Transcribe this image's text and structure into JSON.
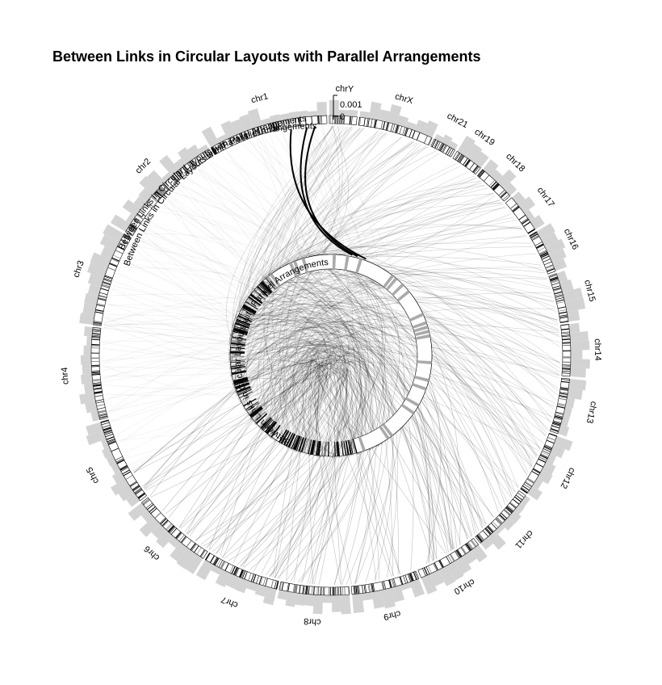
{
  "title": "Between Links in Circular Layouts with Parallel Arrangements",
  "track_annotation": "Between Links in Circular Layouts with Parallel Arrangements",
  "colors": {
    "histogram": "#d3d3d3",
    "band": "#000000",
    "link": "#000000",
    "background": "#ffffff"
  },
  "scale_ticks": {
    "max_label": "0.001",
    "min_label": "0"
  },
  "outer_chromosomes": [
    {
      "name": "chr1",
      "size": 249
    },
    {
      "name": "chr2",
      "size": 243
    },
    {
      "name": "chr3",
      "size": 198
    },
    {
      "name": "chr4",
      "size": 191
    },
    {
      "name": "chr5",
      "size": 181
    },
    {
      "name": "chr6",
      "size": 171
    },
    {
      "name": "chr7",
      "size": 159
    },
    {
      "name": "chr8",
      "size": 145
    },
    {
      "name": "chr9",
      "size": 141
    },
    {
      "name": "chr10",
      "size": 136
    },
    {
      "name": "chr11",
      "size": 135
    },
    {
      "name": "chr12",
      "size": 133
    },
    {
      "name": "chr13",
      "size": 115
    },
    {
      "name": "chr14",
      "size": 107
    },
    {
      "name": "chr15",
      "size": 102
    },
    {
      "name": "chr16",
      "size": 90
    },
    {
      "name": "chr17",
      "size": 81
    },
    {
      "name": "chr18",
      "size": 78
    },
    {
      "name": "chr19",
      "size": 59
    },
    {
      "name": "chr21",
      "size": 48
    },
    {
      "name": "chrX",
      "size": 155
    },
    {
      "name": "chrY",
      "size": 57
    }
  ]
}
